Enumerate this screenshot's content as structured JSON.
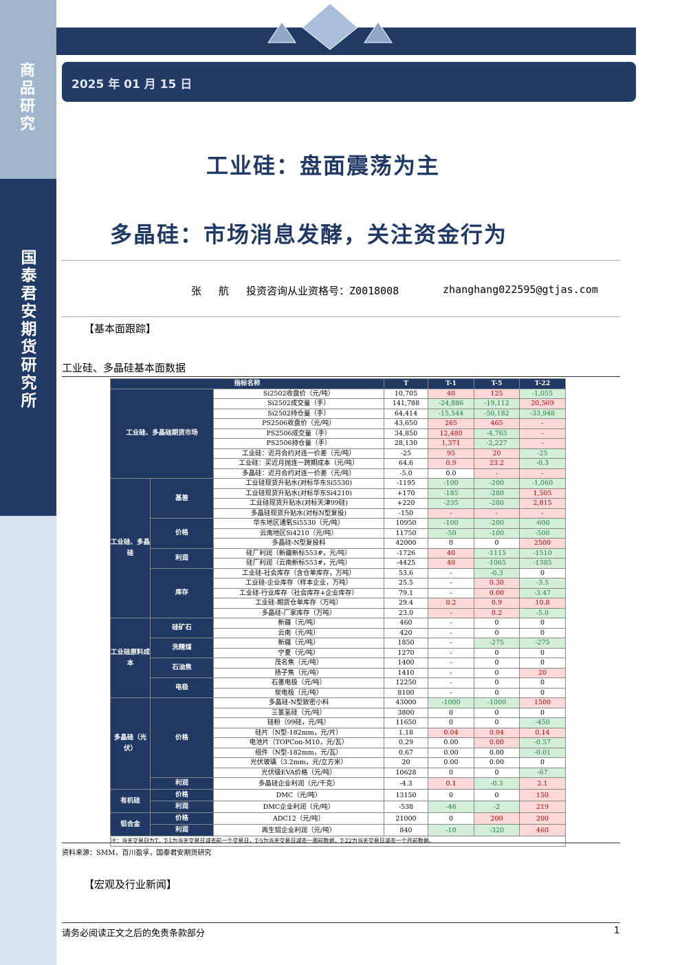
{
  "sidebar": {
    "top": "商品研究",
    "bottom": "国泰君安期货研究所"
  },
  "header": {
    "date": "2025 年 01 月 15 日",
    "title": "工业硅：盘面震荡为主",
    "subtitle": "多晶硅：市场消息发酵，关注资金行为",
    "author": "张 航",
    "license": "投资咨询从业资格号：Z0018008",
    "email": "zhanghang022595@gtjas.com"
  },
  "section1": "【基本面跟踪】",
  "table": {
    "caption": "工业硅、多晶硅基本面数据",
    "columns": [
      "指标名称",
      "T",
      "T-1",
      "T-5",
      "T-22"
    ],
    "groups": [
      {
        "label": "工业硅、多晶硅期货市场",
        "subgroups": [
          {
            "rows": [
              {
                "name": "Si2502收盘价（元/吨）",
                "values": [
                  "10,705",
                  "40",
                  "125",
                  "-1,055"
                ],
                "tones": [
                  "flat",
                  "up",
                  "up",
                  "down"
                ]
              },
              {
                "name": "Si2502成交量（手）",
                "values": [
                  "141,788",
                  "-24,886",
                  "-19,112",
                  "20,569"
                ],
                "tones": [
                  "flat",
                  "down",
                  "down",
                  "up"
                ]
              },
              {
                "name": "Si2502持仓量（手）",
                "values": [
                  "64,414",
                  "-15,544",
                  "-50,182",
                  "-33,948"
                ],
                "tones": [
                  "flat",
                  "down",
                  "down",
                  "down"
                ]
              },
              {
                "name": "PS2506收盘价（元/吨）",
                "values": [
                  "43,650",
                  "265",
                  "465",
                  "-"
                ],
                "tones": [
                  "flat",
                  "up",
                  "up",
                  "up"
                ]
              },
              {
                "name": "PS2506成交量（手）",
                "values": [
                  "34,850",
                  "12,480",
                  "-4,765",
                  "-"
                ],
                "tones": [
                  "flat",
                  "up",
                  "down",
                  "up"
                ]
              },
              {
                "name": "PS2506持仓量（手）",
                "values": [
                  "28,130",
                  "1,371",
                  "-2,227",
                  "-"
                ],
                "tones": [
                  "flat",
                  "up",
                  "down",
                  "up"
                ]
              },
              {
                "name": "工业硅：近月合约对连一价差（元/吨）",
                "values": [
                  "-25",
                  "95",
                  "20",
                  "-25"
                ],
                "tones": [
                  "flat",
                  "up",
                  "up",
                  "down"
                ]
              },
              {
                "name": "工业硅：买近月抛连一跨期成本（元/吨）",
                "values": [
                  "64.6",
                  "0.9",
                  "23.2",
                  "-0.3"
                ],
                "tones": [
                  "flat",
                  "up",
                  "up",
                  "down"
                ]
              },
              {
                "name": "多晶硅：近月合约对连一价差（元/吨）",
                "values": [
                  "-5.0",
                  "0.0",
                  "-",
                  "-"
                ],
                "tones": [
                  "flat",
                  "flat",
                  "up",
                  "up"
                ]
              }
            ]
          }
        ]
      },
      {
        "label": "工业硅、多晶硅",
        "subgroups": [
          {
            "label": "基差",
            "rows": [
              {
                "name": "工业硅现货升贴水(对标华东Si5530)",
                "values": [
                  "-1195",
                  "-100",
                  "-200",
                  "-1,060"
                ],
                "tones": [
                  "flat",
                  "down",
                  "down",
                  "down"
                ]
              },
              {
                "name": "工业硅现货升贴水(对标华东Si4210)",
                "values": [
                  "+170",
                  "-185",
                  "-280",
                  "1,505"
                ],
                "tones": [
                  "flat",
                  "down",
                  "down",
                  "up"
                ]
              },
              {
                "name": "工业硅现货升贴水(对标天津99硅)",
                "values": [
                  "+220",
                  "-235",
                  "-280",
                  "2,815"
                ],
                "tones": [
                  "flat",
                  "down",
                  "down",
                  "up"
                ]
              },
              {
                "name": "多晶硅现货升贴水(对标N型复投)",
                "values": [
                  "-150",
                  "-",
                  "-",
                  "-"
                ],
                "tones": [
                  "flat",
                  "up",
                  "up",
                  "up"
                ]
              }
            ]
          },
          {
            "label": "价格",
            "rows": [
              {
                "name": "华东地区通氧Si5530（元/吨）",
                "values": [
                  "10950",
                  "-100",
                  "-200",
                  "-600"
                ],
                "tones": [
                  "flat",
                  "down",
                  "down",
                  "down"
                ]
              },
              {
                "name": "云南地区Si4210（元/吨）",
                "values": [
                  "11750",
                  "-50",
                  "-100",
                  "-500"
                ],
                "tones": [
                  "flat",
                  "down",
                  "down",
                  "down"
                ]
              },
              {
                "name": "多晶硅-N型复投料",
                "values": [
                  "42000",
                  "0",
                  "0",
                  "2500"
                ],
                "tones": [
                  "flat",
                  "flat",
                  "flat",
                  "up"
                ]
              }
            ]
          },
          {
            "label": "利润",
            "rows": [
              {
                "name": "硅厂利润（新疆新标553#，元/吨）",
                "values": [
                  "-1726",
                  "40",
                  "-1115",
                  "-1510"
                ],
                "tones": [
                  "flat",
                  "up",
                  "down",
                  "down"
                ]
              },
              {
                "name": "硅厂利润（云南新标553#，元/吨）",
                "values": [
                  "-4425",
                  "40",
                  "-1065",
                  "-1385"
                ],
                "tones": [
                  "flat",
                  "up",
                  "down",
                  "down"
                ]
              }
            ]
          },
          {
            "label": "库存",
            "rows": [
              {
                "name": "工业硅-社会库存（含仓单库存，万吨）",
                "values": [
                  "53.6",
                  "-",
                  "-0.3",
                  "0"
                ],
                "tones": [
                  "flat",
                  "flat",
                  "down",
                  "flat"
                ]
              },
              {
                "name": "工业硅-企业库存（样本企业，万吨）",
                "values": [
                  "25.5",
                  "-",
                  "0.30",
                  "-3.5"
                ],
                "tones": [
                  "flat",
                  "flat",
                  "up",
                  "down"
                ]
              },
              {
                "name": "工业硅-行业库存（社会库存+企业库存）",
                "values": [
                  "79.1",
                  "-",
                  "0.00",
                  "-3.47"
                ],
                "tones": [
                  "flat",
                  "flat",
                  "up",
                  "down"
                ]
              },
              {
                "name": "工业硅-期货仓单库存（万吨）",
                "values": [
                  "29.4",
                  "0.2",
                  "0.9",
                  "10.8"
                ],
                "tones": [
                  "flat",
                  "up",
                  "up",
                  "up"
                ]
              },
              {
                "name": "多晶硅-厂家库存（万吨）",
                "values": [
                  "23.0",
                  "-",
                  "0.2",
                  "-5.0"
                ],
                "tones": [
                  "flat",
                  "up",
                  "up",
                  "down"
                ]
              }
            ]
          }
        ]
      },
      {
        "label": "工业硅原料成本",
        "subgroups": [
          {
            "label": "硅矿石",
            "rows": [
              {
                "name": "新疆（元/吨）",
                "values": [
                  "460",
                  "-",
                  "0",
                  "0"
                ],
                "tones": [
                  "flat",
                  "flat",
                  "flat",
                  "flat"
                ]
              },
              {
                "name": "云南（元/吨）",
                "values": [
                  "420",
                  "-",
                  "0",
                  "0"
                ],
                "tones": [
                  "flat",
                  "flat",
                  "flat",
                  "flat"
                ]
              }
            ]
          },
          {
            "label": "洗精煤",
            "rows": [
              {
                "name": "新疆（元/吨）",
                "values": [
                  "1850",
                  "-",
                  "-275",
                  "-275"
                ],
                "tones": [
                  "flat",
                  "flat",
                  "down",
                  "down"
                ]
              },
              {
                "name": "宁夏（元/吨）",
                "values": [
                  "1270",
                  "-",
                  "0",
                  "0"
                ],
                "tones": [
                  "flat",
                  "flat",
                  "flat",
                  "flat"
                ]
              }
            ]
          },
          {
            "label": "石油焦",
            "rows": [
              {
                "name": "茂名焦（元/吨）",
                "values": [
                  "1400",
                  "-",
                  "0",
                  "0"
                ],
                "tones": [
                  "flat",
                  "flat",
                  "flat",
                  "flat"
                ]
              },
              {
                "name": "扬子焦（元/吨）",
                "values": [
                  "1410",
                  "-",
                  "0",
                  "20"
                ],
                "tones": [
                  "flat",
                  "flat",
                  "flat",
                  "up"
                ]
              }
            ]
          },
          {
            "label": "电极",
            "rows": [
              {
                "name": "石墨电极（元/吨）",
                "values": [
                  "12250",
                  "-",
                  "0",
                  "0"
                ],
                "tones": [
                  "flat",
                  "flat",
                  "flat",
                  "flat"
                ]
              },
              {
                "name": "炭电极（元/吨）",
                "values": [
                  "8100",
                  "-",
                  "0",
                  "0"
                ],
                "tones": [
                  "flat",
                  "flat",
                  "flat",
                  "flat"
                ]
              }
            ]
          }
        ]
      },
      {
        "label": "多晶硅（光伏）",
        "subgroups": [
          {
            "label": "价格",
            "rows": [
              {
                "name": "多晶硅-N型致密小料",
                "values": [
                  "43000",
                  "-1000",
                  "-1000",
                  "1500"
                ],
                "tones": [
                  "flat",
                  "down",
                  "down",
                  "up"
                ]
              },
              {
                "name": "三氯氢硅（元/吨）",
                "values": [
                  "3800",
                  "0",
                  "0",
                  "0"
                ],
                "tones": [
                  "flat",
                  "flat",
                  "flat",
                  "flat"
                ]
              },
              {
                "name": "硅粉（99硅，元/吨）",
                "values": [
                  "11650",
                  "0",
                  "0",
                  "-450"
                ],
                "tones": [
                  "flat",
                  "flat",
                  "flat",
                  "down"
                ]
              },
              {
                "name": "硅片（N型-182mm，元/片）",
                "values": [
                  "1.18",
                  "0.04",
                  "0.04",
                  "0.14"
                ],
                "tones": [
                  "flat",
                  "up",
                  "up",
                  "up"
                ]
              },
              {
                "name": "电池片（TOPCon-M10，元/瓦）",
                "values": [
                  "0.29",
                  "0.00",
                  "0.00",
                  "-0.57"
                ],
                "tones": [
                  "flat",
                  "flat",
                  "up",
                  "down"
                ]
              },
              {
                "name": "组件（N型-182mm，元/瓦）",
                "values": [
                  "0.67",
                  "0.00",
                  "0.00",
                  "-0.01"
                ],
                "tones": [
                  "flat",
                  "flat",
                  "flat",
                  "down"
                ]
              },
              {
                "name": "光伏玻璃（3.2mm，元/立方米）",
                "values": [
                  "20",
                  "0.00",
                  "0.00",
                  "0"
                ],
                "tones": [
                  "flat",
                  "flat",
                  "flat",
                  "flat"
                ]
              },
              {
                "name": "光伏级EVA价格（元/吨）",
                "values": [
                  "10628",
                  "0",
                  "0",
                  "-67"
                ],
                "tones": [
                  "flat",
                  "flat",
                  "flat",
                  "down"
                ]
              }
            ]
          },
          {
            "label": "利润",
            "rows": [
              {
                "name": "多晶硅企业利润（元/千克）",
                "values": [
                  "-4.3",
                  "0.1",
                  "-0.3",
                  "2.1"
                ],
                "tones": [
                  "flat",
                  "up",
                  "down",
                  "up"
                ]
              }
            ]
          }
        ]
      },
      {
        "label": "有机硅",
        "subgroups": [
          {
            "label": "价格",
            "rows": [
              {
                "name": "DMC（元/吨）",
                "values": [
                  "13150",
                  "0",
                  "0",
                  "150"
                ],
                "tones": [
                  "flat",
                  "flat",
                  "flat",
                  "up"
                ]
              }
            ]
          },
          {
            "label": "利润",
            "rows": [
              {
                "name": "DMC企业利润（元/吨）",
                "values": [
                  "-538",
                  "-46",
                  "-2",
                  "219"
                ],
                "tones": [
                  "flat",
                  "down",
                  "down",
                  "up"
                ]
              }
            ]
          }
        ]
      },
      {
        "label": "铝合金",
        "subgroups": [
          {
            "label": "价格",
            "rows": [
              {
                "name": "ADC12（元/吨）",
                "values": [
                  "21000",
                  "0",
                  "200",
                  "200"
                ],
                "tones": [
                  "flat",
                  "flat",
                  "up",
                  "up"
                ]
              }
            ]
          },
          {
            "label": "利润",
            "rows": [
              {
                "name": "再生铝企业利润（元/吨）",
                "values": [
                  "840",
                  "-10",
                  "-320",
                  "460"
                ],
                "tones": [
                  "flat",
                  "down",
                  "down",
                  "up"
                ]
              }
            ]
          }
        ]
      }
    ],
    "note": "注：当天交易日为T，T-1为当天交易日减去前一个交易日，T-5为当天交易日减去一周前数据，T-22为当天交易日减去一个月前数据。",
    "source": "资料来源：SMM，百川盈孚，国泰君安期货研究"
  },
  "section2": "【宏观及行业新闻】",
  "footer": {
    "disclaimer": "请务必阅读正文之后的免责条款部分",
    "page": "1"
  }
}
